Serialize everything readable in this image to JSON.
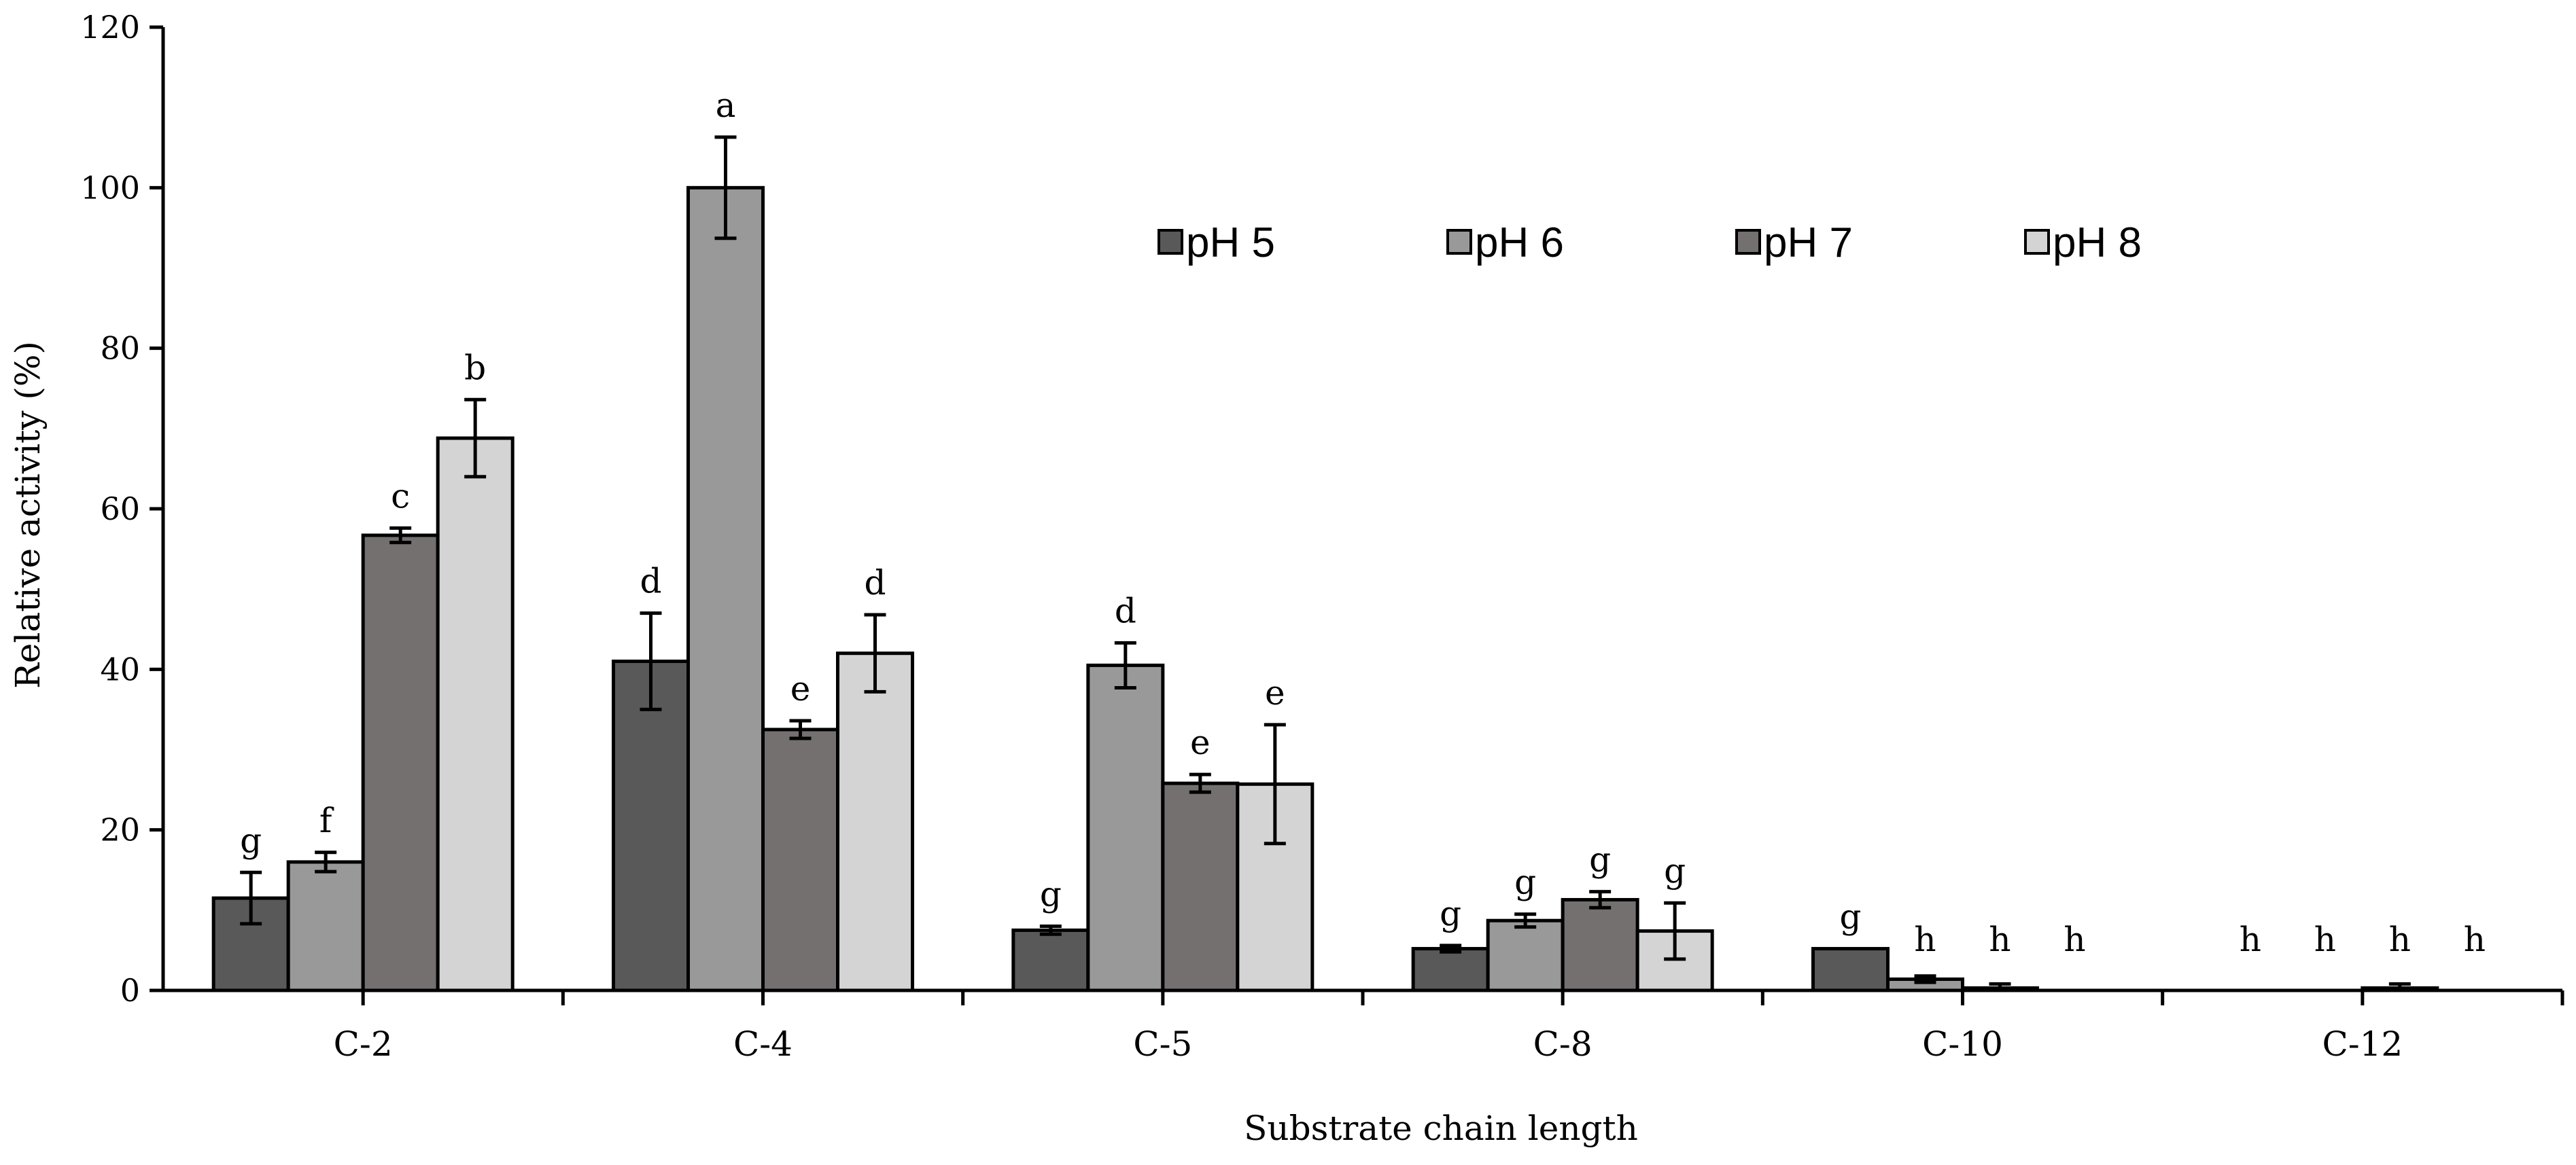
{
  "chart_data": {
    "type": "bar",
    "title": "",
    "xlabel": "Substrate chain length",
    "ylabel": "Relative activity (%)",
    "ylim": [
      0,
      120
    ],
    "yticks": [
      0,
      20,
      40,
      60,
      80,
      100,
      120
    ],
    "grid": false,
    "legend_position": "top-right",
    "categories": [
      "C-2",
      "C-4",
      "C-5",
      "C-8",
      "C-10",
      "C-12"
    ],
    "series": [
      {
        "name": "pH 5",
        "color": "#595959",
        "values": [
          11.5,
          41,
          7.5,
          5.2,
          5.2,
          0
        ],
        "errors": [
          3.2,
          6,
          0.5,
          0.4,
          0,
          0
        ],
        "labels": [
          "g",
          "d",
          "g",
          "g",
          "g",
          "h"
        ]
      },
      {
        "name": "pH 6",
        "color": "#999999",
        "values": [
          16,
          100,
          40.5,
          8.7,
          1.4,
          0
        ],
        "errors": [
          1.2,
          6.3,
          2.8,
          0.8,
          0.4,
          0
        ],
        "labels": [
          "f",
          "a",
          "d",
          "g",
          "h",
          "h"
        ]
      },
      {
        "name": "pH 7",
        "color": "#747070",
        "values": [
          56.7,
          32.5,
          25.8,
          11.3,
          0.3,
          0.3
        ],
        "errors": [
          0.9,
          1.1,
          1.1,
          1,
          0.5,
          0.5
        ],
        "labels": [
          "c",
          "e",
          "e",
          "g",
          "h",
          "h"
        ]
      },
      {
        "name": "pH 8",
        "color": "#d4d4d4",
        "values": [
          68.8,
          42,
          25.7,
          7.4,
          0,
          0
        ],
        "errors": [
          4.8,
          4.8,
          7.4,
          3.5,
          0,
          0
        ],
        "labels": [
          "b",
          "d",
          "e",
          "g",
          "h",
          "h"
        ]
      }
    ]
  }
}
